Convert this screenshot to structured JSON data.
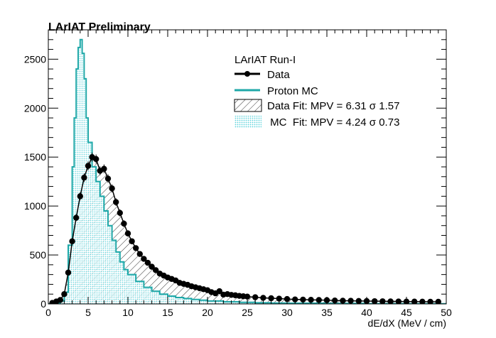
{
  "chart_data": {
    "type": "line",
    "title": "LArIAT Preliminary",
    "xlabel": "dE/dX (MeV / cm)",
    "ylabel": "",
    "xlim": [
      0,
      50
    ],
    "ylim": [
      0,
      2800
    ],
    "xticks": [
      0,
      5,
      10,
      15,
      20,
      25,
      30,
      35,
      40,
      45,
      50
    ],
    "yticks": [
      0,
      500,
      1000,
      1500,
      2000,
      2500
    ],
    "grid": false,
    "legend": {
      "title": "LArIAT Run-I",
      "position": "top-right",
      "entries": [
        "Data",
        "Proton MC",
        "Data Fit: MPV = 6.31 σ 1.57",
        " MC  Fit: MPV = 4.24 σ 0.73"
      ]
    },
    "colors": {
      "data": "#000000",
      "mc": "#1fa8a8",
      "mc_fill": "#8fe3e8"
    },
    "series": [
      {
        "name": "Data",
        "style": "points",
        "x": [
          0.5,
          1.0,
          1.5,
          2.0,
          2.5,
          3.0,
          3.5,
          4.0,
          4.5,
          5.0,
          5.5,
          6.0,
          6.5,
          7.0,
          7.5,
          8.0,
          8.5,
          9.0,
          9.5,
          10.0,
          10.5,
          11.0,
          11.5,
          12.0,
          12.5,
          13.0,
          13.5,
          14.0,
          14.5,
          15.0,
          15.5,
          16.0,
          16.5,
          17.0,
          17.5,
          18.0,
          18.5,
          19.0,
          19.5,
          20.0,
          20.5,
          21.0,
          21.5,
          22.0,
          22.5,
          23.0,
          23.5,
          24.0,
          24.5,
          25.0,
          26.0,
          27.0,
          28.0,
          29.0,
          30.0,
          31.0,
          32.0,
          33.0,
          34.0,
          35.0,
          36.0,
          37.0,
          38.0,
          39.0,
          40.0,
          41.0,
          42.0,
          43.0,
          44.0,
          45.0,
          46.0,
          47.0,
          48.0,
          49.0
        ],
        "y": [
          10,
          25,
          40,
          100,
          320,
          640,
          880,
          1100,
          1290,
          1410,
          1500,
          1480,
          1360,
          1380,
          1280,
          1180,
          1040,
          930,
          820,
          720,
          640,
          570,
          510,
          460,
          420,
          380,
          345,
          310,
          290,
          270,
          255,
          240,
          215,
          205,
          195,
          180,
          170,
          160,
          150,
          140,
          120,
          108,
          130,
          95,
          100,
          92,
          88,
          82,
          78,
          75,
          68,
          62,
          58,
          54,
          50,
          46,
          44,
          42,
          40,
          38,
          35,
          33,
          32,
          30,
          29,
          28,
          27,
          26,
          25,
          24,
          24,
          23,
          22,
          22
        ]
      },
      {
        "name": "Proton MC",
        "style": "histogram",
        "bin_edges": [
          0.0,
          0.5,
          1.0,
          1.5,
          2.0,
          2.5,
          3.0,
          3.25,
          3.5,
          3.75,
          4.0,
          4.25,
          4.5,
          4.75,
          5.0,
          5.5,
          6.0,
          6.5,
          7.0,
          7.5,
          8.0,
          8.5,
          9.0,
          9.5,
          10.0,
          11.0,
          12.0,
          13.0,
          14.0,
          15.0,
          16.0,
          17.0,
          18.0,
          19.0,
          20.0,
          22.0,
          24.0,
          26.0,
          28.0,
          30.0,
          35.0,
          40.0,
          45.0,
          50.0
        ],
        "counts": [
          0,
          5,
          10,
          30,
          120,
          600,
          1400,
          1900,
          2400,
          2620,
          2700,
          2560,
          2300,
          1900,
          1650,
          1400,
          1250,
          1100,
          950,
          800,
          650,
          530,
          430,
          350,
          300,
          230,
          170,
          130,
          100,
          80,
          65,
          55,
          45,
          38,
          30,
          22,
          16,
          12,
          9,
          7,
          5,
          3,
          2
        ]
      }
    ]
  }
}
